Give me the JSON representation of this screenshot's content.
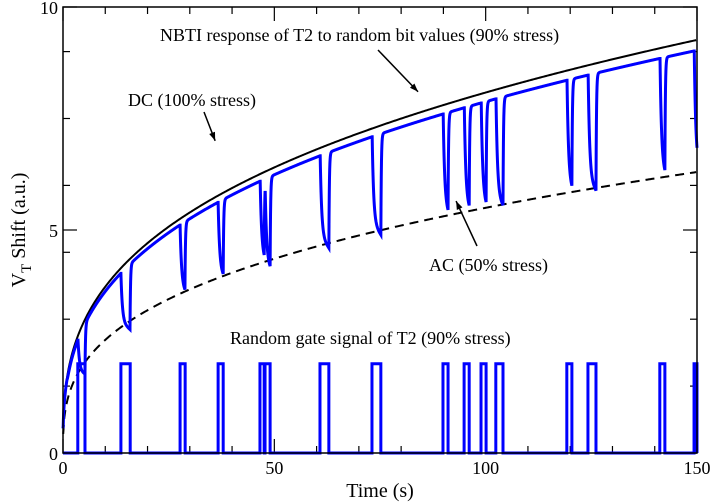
{
  "chart_data": {
    "type": "line",
    "title": "",
    "xlabel": "Time (s)",
    "ylabel_main": "V",
    "ylabel_sub": "T",
    "ylabel_rest": " Shift (a.u.)",
    "xlim": [
      0,
      150
    ],
    "ylim": [
      0,
      10
    ],
    "x_ticks": [
      0,
      50,
      100,
      150
    ],
    "y_ticks": [
      0,
      5,
      10
    ],
    "x_minor_step": 10,
    "y_minor_step": 1.5,
    "grid": false,
    "colors": {
      "nbti": "#0000ff",
      "gate": "#0000ff",
      "dc": "#000000",
      "ac": "#000000"
    },
    "series": [
      {
        "name": "DC (100% stress)",
        "style": "solid",
        "model": "power",
        "coefficient": 1.72,
        "exponent": 0.336
      },
      {
        "name": "AC (50% stress)",
        "style": "dashed",
        "model": "power",
        "coefficient": 1.17,
        "exponent": 0.336
      },
      {
        "name": "NBTI response of T2 to random bit values (90% stress)",
        "style": "solid",
        "model": "stress-recovery"
      },
      {
        "name": "Random gate signal of T2 (90% stress)",
        "style": "solid",
        "model": "step",
        "high": 2.0,
        "low": 0
      }
    ],
    "gate_low_intervals": [
      [
        3.5,
        5.2
      ],
      [
        13.7,
        15.9
      ],
      [
        27.7,
        28.9
      ],
      [
        36.7,
        37.9
      ],
      [
        46.6,
        47.6
      ],
      [
        47.8,
        49.0
      ],
      [
        60.8,
        62.9
      ],
      [
        73.1,
        75.2
      ],
      [
        89.9,
        91.1
      ],
      [
        94.9,
        96.1
      ],
      [
        98.9,
        100.1
      ],
      [
        102.4,
        104.1
      ],
      [
        119.2,
        120.4
      ],
      [
        124.2,
        126.1
      ],
      [
        141.2,
        142.4
      ],
      [
        149.3,
        150
      ]
    ],
    "annotations": [
      {
        "text": "NBTI response of T2 to random bit values (90% stress)",
        "target_x": 84,
        "target_y": 8.1
      },
      {
        "text": "DC (100% stress)",
        "target_x": 36,
        "target_y": 7.0
      },
      {
        "text": "AC (50% stress)",
        "target_x": 93,
        "target_y": 5.65
      },
      {
        "text": "Random gate signal of T2 (90% stress)"
      }
    ]
  }
}
